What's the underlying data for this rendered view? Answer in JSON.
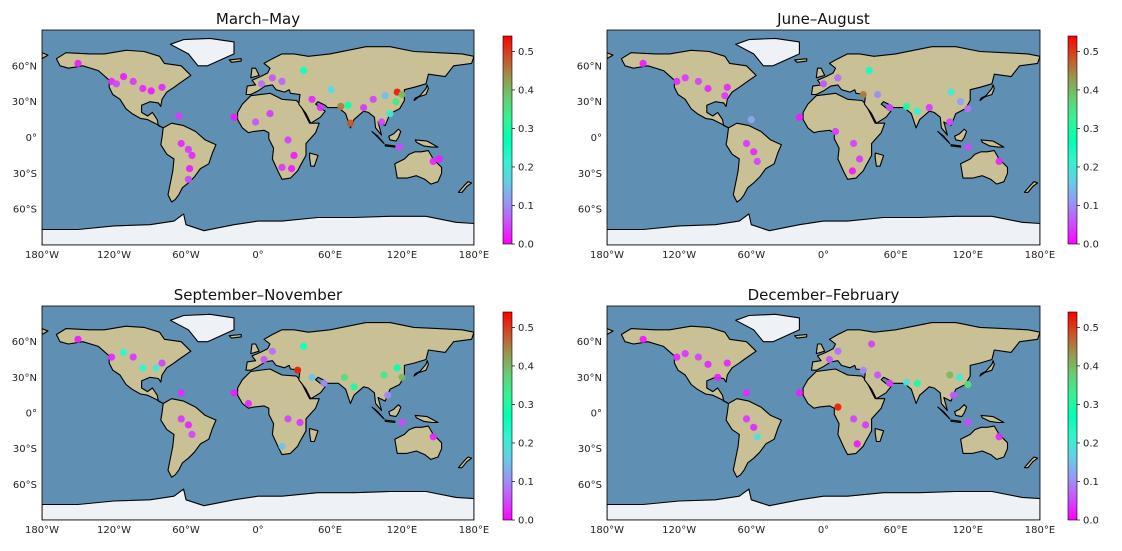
{
  "figure": {
    "colormap": "rainbow",
    "colorbar_ticks": [
      "0.0",
      "0.1",
      "0.2",
      "0.3",
      "0.4",
      "0.5"
    ],
    "colorbar_range": [
      0,
      0.54
    ],
    "x_ticks": [
      "180°W",
      "120°W",
      "60°W",
      "0°",
      "60°E",
      "120°E",
      "180°E"
    ],
    "y_ticks": [
      "60°N",
      "30°N",
      "0°",
      "30°S",
      "60°S"
    ],
    "colors": {
      "ocean": "#5f8fb3",
      "land": "#c9c096",
      "ice": "#eef2f6",
      "coast": "#000000",
      "marker_low": "#7a1cf0",
      "marker_high": "#ff1e10"
    }
  },
  "chart_data": [
    {
      "type": "scatter",
      "title": "March–May",
      "xlim": [
        -180,
        180
      ],
      "ylim": [
        -90,
        90
      ],
      "points": [
        {
          "lon": -150,
          "lat": 62,
          "value": 0.02
        },
        {
          "lon": -122,
          "lat": 47,
          "value": 0.03
        },
        {
          "lon": -118,
          "lat": 45,
          "value": 0.05
        },
        {
          "lon": -112,
          "lat": 51,
          "value": 0.02
        },
        {
          "lon": -104,
          "lat": 47,
          "value": 0.04
        },
        {
          "lon": -96,
          "lat": 41,
          "value": 0.03
        },
        {
          "lon": -89,
          "lat": 39,
          "value": 0.02
        },
        {
          "lon": -80,
          "lat": 42,
          "value": 0.03
        },
        {
          "lon": -66,
          "lat": 18,
          "value": 0.04
        },
        {
          "lon": -64,
          "lat": -5,
          "value": 0.03
        },
        {
          "lon": -58,
          "lat": -10,
          "value": 0.04
        },
        {
          "lon": -55,
          "lat": -15,
          "value": 0.03
        },
        {
          "lon": -57,
          "lat": -26,
          "value": 0.02
        },
        {
          "lon": -58,
          "lat": -35,
          "value": 0.05
        },
        {
          "lon": -20,
          "lat": 17,
          "value": 0.02
        },
        {
          "lon": -2,
          "lat": 13,
          "value": 0.06
        },
        {
          "lon": 10,
          "lat": 20,
          "value": 0.04
        },
        {
          "lon": 3,
          "lat": 45,
          "value": 0.08
        },
        {
          "lon": 12,
          "lat": 50,
          "value": 0.06
        },
        {
          "lon": 20,
          "lat": 47,
          "value": 0.07
        },
        {
          "lon": 38,
          "lat": 56,
          "value": 0.25
        },
        {
          "lon": 45,
          "lat": 32,
          "value": 0.03
        },
        {
          "lon": 52,
          "lat": 25,
          "value": 0.03
        },
        {
          "lon": 61,
          "lat": 40,
          "value": 0.18
        },
        {
          "lon": 69,
          "lat": 26,
          "value": 0.45
        },
        {
          "lon": 75,
          "lat": 27,
          "value": 0.28
        },
        {
          "lon": 77,
          "lat": 12,
          "value": 0.48
        },
        {
          "lon": 88,
          "lat": 25,
          "value": 0.04
        },
        {
          "lon": 96,
          "lat": 32,
          "value": 0.05
        },
        {
          "lon": 106,
          "lat": 35,
          "value": 0.15
        },
        {
          "lon": 116,
          "lat": 38,
          "value": 0.52
        },
        {
          "lon": 120,
          "lat": 36,
          "value": 0.4
        },
        {
          "lon": 115,
          "lat": 30,
          "value": 0.35
        },
        {
          "lon": 110,
          "lat": 20,
          "value": 0.2
        },
        {
          "lon": 103,
          "lat": 13,
          "value": 0.05
        },
        {
          "lon": 25,
          "lat": -2,
          "value": 0.05
        },
        {
          "lon": 30,
          "lat": -15,
          "value": 0.02
        },
        {
          "lon": 20,
          "lat": -25,
          "value": 0.04
        },
        {
          "lon": 28,
          "lat": -26,
          "value": 0.02
        },
        {
          "lon": 118,
          "lat": -8,
          "value": 0.05
        },
        {
          "lon": 146,
          "lat": -20,
          "value": 0.03
        },
        {
          "lon": 151,
          "lat": -18,
          "value": 0.02
        }
      ]
    },
    {
      "type": "scatter",
      "title": "June–August",
      "xlim": [
        -180,
        180
      ],
      "ylim": [
        -90,
        90
      ],
      "points": [
        {
          "lon": -150,
          "lat": 62,
          "value": 0.02
        },
        {
          "lon": -122,
          "lat": 47,
          "value": 0.03
        },
        {
          "lon": -115,
          "lat": 50,
          "value": 0.04
        },
        {
          "lon": -104,
          "lat": 47,
          "value": 0.05
        },
        {
          "lon": -96,
          "lat": 41,
          "value": 0.03
        },
        {
          "lon": -82,
          "lat": 35,
          "value": 0.04
        },
        {
          "lon": -80,
          "lat": 42,
          "value": 0.03
        },
        {
          "lon": -60,
          "lat": 15,
          "value": 0.12
        },
        {
          "lon": -64,
          "lat": -5,
          "value": 0.04
        },
        {
          "lon": -58,
          "lat": -12,
          "value": 0.03
        },
        {
          "lon": -55,
          "lat": -20,
          "value": 0.05
        },
        {
          "lon": -20,
          "lat": 17,
          "value": 0.02
        },
        {
          "lon": 0,
          "lat": 45,
          "value": 0.06
        },
        {
          "lon": 12,
          "lat": 50,
          "value": 0.08
        },
        {
          "lon": 38,
          "lat": 56,
          "value": 0.25
        },
        {
          "lon": 33,
          "lat": 36,
          "value": 0.45
        },
        {
          "lon": 45,
          "lat": 36,
          "value": 0.1
        },
        {
          "lon": 55,
          "lat": 25,
          "value": 0.05
        },
        {
          "lon": 69,
          "lat": 26,
          "value": 0.3
        },
        {
          "lon": 78,
          "lat": 22,
          "value": 0.22
        },
        {
          "lon": 88,
          "lat": 25,
          "value": 0.04
        },
        {
          "lon": 106,
          "lat": 38,
          "value": 0.2
        },
        {
          "lon": 114,
          "lat": 30,
          "value": 0.12
        },
        {
          "lon": 120,
          "lat": 24,
          "value": 0.08
        },
        {
          "lon": 105,
          "lat": 13,
          "value": 0.05
        },
        {
          "lon": 10,
          "lat": 5,
          "value": 0.04
        },
        {
          "lon": 25,
          "lat": -5,
          "value": 0.05
        },
        {
          "lon": 30,
          "lat": -18,
          "value": 0.04
        },
        {
          "lon": 24,
          "lat": -28,
          "value": 0.02
        },
        {
          "lon": 120,
          "lat": -8,
          "value": 0.05
        },
        {
          "lon": 146,
          "lat": -20,
          "value": 0.03
        }
      ]
    },
    {
      "type": "scatter",
      "title": "September–November",
      "xlim": [
        -180,
        180
      ],
      "ylim": [
        -90,
        90
      ],
      "points": [
        {
          "lon": -150,
          "lat": 62,
          "value": 0.02
        },
        {
          "lon": -122,
          "lat": 47,
          "value": 0.03
        },
        {
          "lon": -112,
          "lat": 51,
          "value": 0.22
        },
        {
          "lon": -104,
          "lat": 47,
          "value": 0.04
        },
        {
          "lon": -96,
          "lat": 38,
          "value": 0.22
        },
        {
          "lon": -85,
          "lat": 38,
          "value": 0.2
        },
        {
          "lon": -80,
          "lat": 42,
          "value": 0.05
        },
        {
          "lon": -64,
          "lat": 17,
          "value": 0.03
        },
        {
          "lon": -64,
          "lat": -5,
          "value": 0.04
        },
        {
          "lon": -58,
          "lat": -10,
          "value": 0.03
        },
        {
          "lon": -55,
          "lat": -18,
          "value": 0.05
        },
        {
          "lon": -20,
          "lat": 17,
          "value": 0.02
        },
        {
          "lon": 5,
          "lat": 45,
          "value": 0.06
        },
        {
          "lon": 12,
          "lat": 52,
          "value": 0.08
        },
        {
          "lon": 38,
          "lat": 56,
          "value": 0.25
        },
        {
          "lon": 33,
          "lat": 36,
          "value": 0.52
        },
        {
          "lon": 45,
          "lat": 30,
          "value": 0.15
        },
        {
          "lon": 55,
          "lat": 25,
          "value": 0.1
        },
        {
          "lon": 72,
          "lat": 30,
          "value": 0.36
        },
        {
          "lon": 80,
          "lat": 22,
          "value": 0.3
        },
        {
          "lon": 105,
          "lat": 32,
          "value": 0.34
        },
        {
          "lon": 116,
          "lat": 38,
          "value": 0.28
        },
        {
          "lon": 120,
          "lat": 30,
          "value": 0.4
        },
        {
          "lon": 108,
          "lat": 15,
          "value": 0.1
        },
        {
          "lon": -8,
          "lat": 8,
          "value": 0.03
        },
        {
          "lon": 25,
          "lat": -5,
          "value": 0.05
        },
        {
          "lon": 35,
          "lat": -8,
          "value": 0.04
        },
        {
          "lon": 20,
          "lat": -28,
          "value": 0.15
        },
        {
          "lon": 120,
          "lat": -8,
          "value": 0.05
        },
        {
          "lon": 146,
          "lat": -20,
          "value": 0.03
        }
      ]
    },
    {
      "type": "scatter",
      "title": "December–February",
      "xlim": [
        -180,
        180
      ],
      "ylim": [
        -90,
        90
      ],
      "points": [
        {
          "lon": -150,
          "lat": 62,
          "value": 0.02
        },
        {
          "lon": -122,
          "lat": 47,
          "value": 0.03
        },
        {
          "lon": -115,
          "lat": 50,
          "value": 0.04
        },
        {
          "lon": -104,
          "lat": 47,
          "value": 0.05
        },
        {
          "lon": -96,
          "lat": 41,
          "value": 0.03
        },
        {
          "lon": -88,
          "lat": 30,
          "value": 0.02
        },
        {
          "lon": -80,
          "lat": 42,
          "value": 0.03
        },
        {
          "lon": -64,
          "lat": 17,
          "value": 0.03
        },
        {
          "lon": -64,
          "lat": -5,
          "value": 0.04
        },
        {
          "lon": -58,
          "lat": -12,
          "value": 0.03
        },
        {
          "lon": -55,
          "lat": -20,
          "value": 0.18
        },
        {
          "lon": -20,
          "lat": 17,
          "value": 0.02
        },
        {
          "lon": 5,
          "lat": 45,
          "value": 0.06
        },
        {
          "lon": 12,
          "lat": 52,
          "value": 0.08
        },
        {
          "lon": 40,
          "lat": 58,
          "value": 0.05
        },
        {
          "lon": 33,
          "lat": 36,
          "value": 0.1
        },
        {
          "lon": 45,
          "lat": 32,
          "value": 0.06
        },
        {
          "lon": 55,
          "lat": 25,
          "value": 0.04
        },
        {
          "lon": 69,
          "lat": 26,
          "value": 0.18
        },
        {
          "lon": 78,
          "lat": 25,
          "value": 0.3
        },
        {
          "lon": 105,
          "lat": 32,
          "value": 0.4
        },
        {
          "lon": 113,
          "lat": 30,
          "value": 0.2
        },
        {
          "lon": 120,
          "lat": 24,
          "value": 0.36
        },
        {
          "lon": 108,
          "lat": 15,
          "value": 0.06
        },
        {
          "lon": 12,
          "lat": 5,
          "value": 0.52
        },
        {
          "lon": 25,
          "lat": -5,
          "value": 0.05
        },
        {
          "lon": 35,
          "lat": -10,
          "value": 0.04
        },
        {
          "lon": 28,
          "lat": -26,
          "value": 0.02
        },
        {
          "lon": 120,
          "lat": -8,
          "value": 0.05
        },
        {
          "lon": 146,
          "lat": -20,
          "value": 0.03
        }
      ]
    }
  ]
}
